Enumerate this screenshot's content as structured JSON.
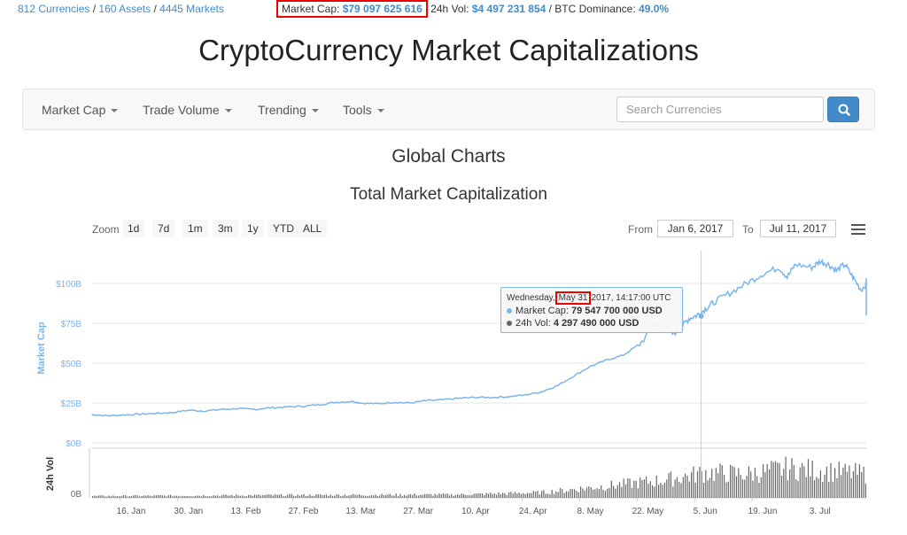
{
  "topbar": {
    "currencies": "812 Currencies",
    "assets": "160 Assets",
    "markets": "4445 Markets",
    "sep": "/",
    "market_cap_label": "Market Cap:",
    "market_cap_value": "$79 097 625 616",
    "vol_label": "24h Vol:",
    "vol_value": "$4 497 231 854",
    "btc_sep": "/ BTC Dominance:",
    "btc_value": "49.0%"
  },
  "page_title": "CryptoCurrency Market Capitalizations",
  "nav": {
    "items": [
      "Market Cap",
      "Trade Volume",
      "Trending",
      "Tools"
    ],
    "search_placeholder": "Search Currencies"
  },
  "section_title": "Global Charts",
  "chart_title": "Total Market Capitalization",
  "range": {
    "zoom_label": "Zoom",
    "buttons": [
      "1d",
      "7d",
      "1m",
      "3m",
      "1y",
      "YTD",
      "ALL"
    ],
    "from_label": "From",
    "from_value": "Jan 6, 2017",
    "to_label": "To",
    "to_value": "Jul 11, 2017"
  },
  "tooltip": {
    "day": "Wednesday,",
    "date": "May 31",
    "rest": "2017, 14:17:00 UTC",
    "cap_label": "Market Cap:",
    "cap_value": "79 547 700 000 USD",
    "vol_label": "24h Vol:",
    "vol_value": "4 297 490 000 USD"
  },
  "colors": {
    "accent": "#428bca",
    "line": "#7cb5ec",
    "bars": "#666666",
    "highlight": "#e00000"
  },
  "chart_data": {
    "type": "line",
    "title": "Total Market Capitalization",
    "ylabel": "Market Cap",
    "ylabel2": "24h Vol",
    "yticks": [
      "$0B",
      "$25B",
      "$50B",
      "$75B",
      "$100B"
    ],
    "ylim": [
      0,
      110
    ],
    "vol_ticks": [
      "0B"
    ],
    "xticks": [
      "16. Jan",
      "30. Jan",
      "13. Feb",
      "27. Feb",
      "13. Mar",
      "27. Mar",
      "10. Apr",
      "24. Apr",
      "8. May",
      "22. May",
      "5. Jun",
      "19. Jun",
      "3. Jul"
    ],
    "x_days": [
      0,
      14,
      28,
      42,
      56,
      70,
      84,
      98,
      112,
      126,
      140,
      154,
      168
    ],
    "series": [
      {
        "name": "Market Cap",
        "points": [
          [
            -10,
            18
          ],
          [
            -6,
            17
          ],
          [
            -2,
            17.5
          ],
          [
            2,
            18
          ],
          [
            6,
            18.5
          ],
          [
            10,
            19
          ],
          [
            14,
            20.5
          ],
          [
            18,
            20
          ],
          [
            22,
            21
          ],
          [
            26,
            21.5
          ],
          [
            30,
            21
          ],
          [
            34,
            22
          ],
          [
            38,
            22.5
          ],
          [
            42,
            23
          ],
          [
            46,
            24
          ],
          [
            50,
            25.5
          ],
          [
            54,
            26
          ],
          [
            56,
            25
          ],
          [
            60,
            24.5
          ],
          [
            64,
            25.5
          ],
          [
            68,
            25
          ],
          [
            72,
            26.5
          ],
          [
            76,
            27
          ],
          [
            80,
            28
          ],
          [
            84,
            28.5
          ],
          [
            88,
            28.5
          ],
          [
            92,
            29
          ],
          [
            96,
            30
          ],
          [
            100,
            32
          ],
          [
            104,
            36
          ],
          [
            108,
            42
          ],
          [
            112,
            48
          ],
          [
            116,
            52
          ],
          [
            120,
            55
          ],
          [
            124,
            62
          ],
          [
            128,
            74
          ],
          [
            130,
            76
          ],
          [
            132,
            68
          ],
          [
            134,
            72
          ],
          [
            136,
            78
          ],
          [
            138,
            80
          ],
          [
            140,
            84
          ],
          [
            142,
            88
          ],
          [
            146,
            94
          ],
          [
            150,
            100
          ],
          [
            154,
            106
          ],
          [
            158,
            110
          ],
          [
            160,
            104
          ],
          [
            162,
            112
          ],
          [
            166,
            110
          ],
          [
            168,
            114
          ],
          [
            170,
            112
          ],
          [
            172,
            108
          ],
          [
            174,
            112
          ],
          [
            176,
            104
          ],
          [
            178,
            96
          ],
          [
            180,
            102
          ],
          [
            182,
            97
          ],
          [
            184,
            100
          ],
          [
            186,
            98
          ],
          [
            188,
            96
          ],
          [
            190,
            80
          ]
        ]
      },
      {
        "name": "24h Vol",
        "points": [
          [
            -10,
            0.3
          ],
          [
            20,
            0.4
          ],
          [
            40,
            0.45
          ],
          [
            60,
            0.5
          ],
          [
            80,
            0.55
          ],
          [
            100,
            0.9
          ],
          [
            110,
            1.6
          ],
          [
            120,
            2.3
          ],
          [
            130,
            3.0
          ],
          [
            140,
            4.3
          ],
          [
            150,
            4.0
          ],
          [
            160,
            5.0
          ],
          [
            170,
            4.5
          ],
          [
            180,
            4.0
          ],
          [
            190,
            3.5
          ]
        ]
      }
    ]
  }
}
